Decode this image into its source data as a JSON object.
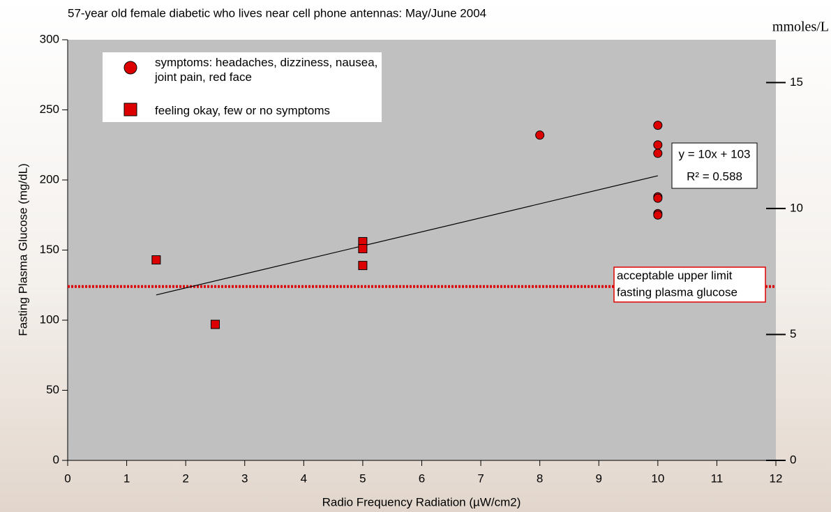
{
  "chart_data": {
    "type": "scatter",
    "title": "57-year old female diabetic who lives near cell phone antennas:  May/June 2004",
    "xlabel": "Radio Frequency Radiation (µW/cm2)",
    "ylabel": "Fasting Plasma Glucose (mg/dL)",
    "y2label": "mmoles/L",
    "xlim": [
      0,
      12
    ],
    "xticks": [
      0,
      1,
      2,
      3,
      4,
      5,
      6,
      7,
      8,
      9,
      10,
      11,
      12
    ],
    "ylim": [
      0,
      300
    ],
    "yticks": [
      0,
      50,
      100,
      150,
      200,
      250,
      300
    ],
    "y2lim": [
      0,
      16.7
    ],
    "y2ticks": [
      0,
      5,
      10,
      15
    ],
    "series": [
      {
        "name": "symptoms: headaches, dizziness, nausea, joint pain, red face",
        "marker": "circle",
        "color": "#dd0000",
        "x": [
          8,
          10,
          10,
          10,
          10,
          10,
          10,
          10
        ],
        "values": [
          232,
          239,
          225,
          219,
          188,
          187,
          176,
          175
        ]
      },
      {
        "name": "feeling okay, few or no symptoms",
        "marker": "square",
        "color": "#dd0000",
        "x": [
          1.5,
          2.5,
          5,
          5,
          5
        ],
        "values": [
          143,
          97,
          156,
          151,
          139
        ]
      }
    ],
    "trendline": {
      "x": [
        1.5,
        10
      ],
      "values": [
        118,
        203
      ],
      "color": "#000000",
      "label": [
        "y = 10x + 103",
        "R² = 0.588"
      ]
    },
    "threshold": {
      "value": 124,
      "color": "#dd0000",
      "label": [
        "acceptable upper limit",
        "fasting plasma glucose"
      ]
    }
  }
}
